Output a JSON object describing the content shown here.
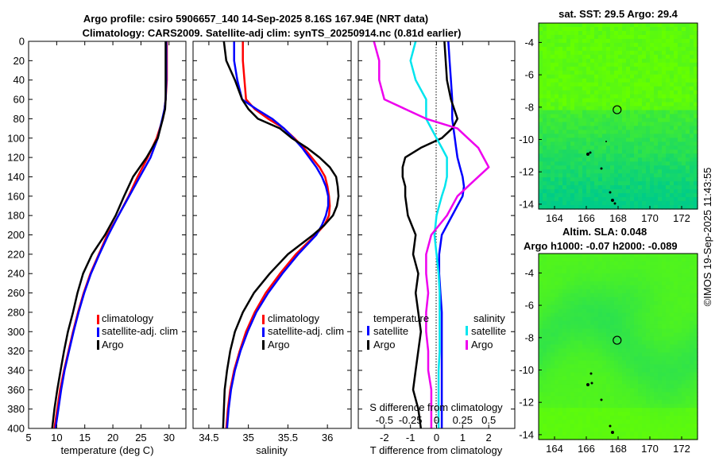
{
  "title": {
    "line1": "Argo profile: csiro 5906657_140 14-Sep-2025 8.16S 167.94E (NRT data)",
    "line2": "Climatology: CARS2009. Satellite-adj clim: synTS_20250914.nc (0.81d earlier)"
  },
  "watermark": "©IMOS 19-Sep-2025 11:43:55",
  "colors": {
    "climatology": "#ff0000",
    "satellite": "#0000ff",
    "argo": "#000000",
    "salinity_satellite": "#00e5ee",
    "salinity_argo": "#ee00ee",
    "map_high": "#66ff00",
    "map_low": "#00cc88"
  },
  "chart_data": [
    {
      "type": "line",
      "panel": "temperature",
      "xlabel": "temperature (deg C)",
      "ylabel": "",
      "xlim": [
        5,
        33
      ],
      "ylim": [
        400,
        0
      ],
      "xticks": [
        "5",
        "10",
        "15",
        "20",
        "25",
        "30"
      ],
      "yticks": [
        "0",
        "20",
        "40",
        "60",
        "80",
        "100",
        "120",
        "140",
        "160",
        "180",
        "200",
        "220",
        "240",
        "260",
        "280",
        "300",
        "320",
        "340",
        "360",
        "380",
        "400"
      ],
      "legend": [
        "climatology",
        "satellite-adj. clim",
        "Argo"
      ],
      "legend_position": "lower-right",
      "depth": [
        0,
        20,
        40,
        60,
        70,
        80,
        100,
        120,
        140,
        160,
        180,
        200,
        220,
        240,
        260,
        280,
        300,
        320,
        340,
        360,
        380,
        400
      ],
      "series": [
        {
          "name": "climatology",
          "values": [
            29.6,
            29.6,
            29.6,
            29.4,
            29.2,
            28.9,
            27.8,
            26.2,
            24.4,
            22.8,
            21.0,
            19.0,
            17.5,
            16.0,
            14.8,
            13.8,
            12.9,
            12.1,
            11.3,
            10.6,
            10.1,
            9.6
          ]
        },
        {
          "name": "satellite-adj. clim",
          "values": [
            29.5,
            29.5,
            29.5,
            29.4,
            29.2,
            28.8,
            28.0,
            26.7,
            24.8,
            22.9,
            21.0,
            19.2,
            17.6,
            16.1,
            14.9,
            13.9,
            13.0,
            12.2,
            11.4,
            10.8,
            10.3,
            9.8
          ]
        },
        {
          "name": "Argo",
          "values": [
            29.4,
            29.4,
            29.4,
            29.4,
            29.3,
            28.9,
            28.0,
            26.0,
            23.6,
            22.0,
            20.5,
            18.6,
            16.3,
            14.7,
            13.7,
            12.9,
            12.0,
            11.3,
            10.7,
            10.1,
            9.6,
            9.2
          ]
        }
      ]
    },
    {
      "type": "line",
      "panel": "salinity",
      "xlabel": "salinity",
      "xlim": [
        34.3,
        36.3
      ],
      "ylim": [
        400,
        0
      ],
      "xticks": [
        "34.5",
        "35",
        "35.5",
        "36"
      ],
      "legend": [
        "climatology",
        "satellite-adj. clim",
        "Argo"
      ],
      "legend_position": "lower-right",
      "depth": [
        0,
        20,
        40,
        60,
        70,
        80,
        90,
        100,
        110,
        120,
        130,
        140,
        150,
        160,
        170,
        180,
        190,
        200,
        220,
        240,
        260,
        280,
        300,
        320,
        340,
        360,
        380,
        400
      ],
      "series": [
        {
          "name": "climatology",
          "values": [
            34.93,
            34.93,
            34.95,
            34.97,
            35.08,
            35.25,
            35.45,
            35.58,
            35.7,
            35.8,
            35.9,
            35.97,
            36.0,
            36.02,
            36.03,
            36.02,
            35.96,
            35.85,
            35.6,
            35.4,
            35.22,
            35.08,
            34.97,
            34.89,
            34.82,
            34.77,
            34.74,
            34.72
          ]
        },
        {
          "name": "satellite-adj. clim",
          "values": [
            34.82,
            34.82,
            34.86,
            34.92,
            35.1,
            35.3,
            35.45,
            35.57,
            35.68,
            35.77,
            35.86,
            35.93,
            35.98,
            36.01,
            36.01,
            35.98,
            35.93,
            35.86,
            35.63,
            35.43,
            35.25,
            35.1,
            34.99,
            34.9,
            34.83,
            34.78,
            34.75,
            34.73
          ]
        },
        {
          "name": "Argo",
          "values": [
            34.69,
            34.72,
            34.83,
            34.92,
            35.0,
            35.12,
            35.4,
            35.55,
            35.74,
            35.9,
            36.03,
            36.11,
            36.13,
            36.14,
            36.12,
            36.07,
            35.96,
            35.82,
            35.5,
            35.27,
            35.07,
            34.93,
            34.83,
            34.77,
            34.73,
            34.7,
            34.69,
            34.68
          ]
        }
      ]
    },
    {
      "type": "line",
      "panel": "difference",
      "xlabel": "T difference from climatology",
      "xlabel_top": "S difference from climatology",
      "xlim": [
        -3,
        3
      ],
      "ylim": [
        400,
        0
      ],
      "xticks": [
        "-2",
        "-1",
        "0",
        "1",
        "2"
      ],
      "xticks_salinity": [
        "-0.5",
        "-0.25",
        "0",
        "0.25",
        "0.5"
      ],
      "legend_temperature_header": "temperature",
      "legend_salinity_header": "salinity",
      "legend": [
        "satellite",
        "Argo",
        "satellite",
        "Argo"
      ],
      "legend_position": "lower-center",
      "depth": [
        0,
        20,
        40,
        60,
        80,
        90,
        100,
        110,
        120,
        130,
        140,
        150,
        160,
        180,
        200,
        220,
        240,
        260,
        280,
        300,
        320,
        340,
        360,
        380,
        400
      ],
      "series": [
        {
          "name": "temperature satellite",
          "values": [
            0.45,
            0.5,
            0.55,
            0.6,
            0.6,
            0.65,
            0.7,
            0.75,
            0.8,
            0.9,
            1.0,
            1.05,
            1.0,
            0.6,
            0.2,
            0.1,
            0.1,
            0.15,
            0.2,
            0.2,
            0.2,
            0.2,
            0.2,
            0.2,
            0.2
          ]
        },
        {
          "name": "temperature Argo",
          "values": [
            0.3,
            0.35,
            0.4,
            0.55,
            0.8,
            0.6,
            0.2,
            -0.6,
            -1.2,
            -1.3,
            -1.3,
            -1.2,
            -1.2,
            -1.1,
            -0.8,
            -0.9,
            -0.7,
            -0.8,
            -0.7,
            -0.6,
            -0.7,
            -0.8,
            -0.9,
            -0.7,
            -0.6
          ]
        },
        {
          "name": "salinity satellite",
          "values": [
            -0.2,
            -0.25,
            -0.2,
            -0.1,
            -0.1,
            -0.05,
            0.0,
            0.05,
            0.1,
            0.1,
            0.1,
            0.08,
            0.05,
            0.0,
            -0.02,
            0.0,
            0.02,
            0.03,
            0.03,
            0.03,
            0.03,
            0.02,
            0.02,
            0.02,
            0.02
          ]
        },
        {
          "name": "salinity Argo",
          "values": [
            -0.6,
            -0.55,
            -0.55,
            -0.5,
            -0.1,
            0.2,
            0.3,
            0.4,
            0.45,
            0.5,
            0.4,
            0.3,
            0.2,
            0.1,
            -0.05,
            -0.1,
            -0.1,
            -0.08,
            -0.1,
            -0.1,
            -0.08,
            -0.08,
            -0.05,
            -0.05,
            -0.05
          ]
        }
      ]
    },
    {
      "type": "heatmap",
      "panel": "sst-map",
      "title": "sat. SST: 29.5 Argo: 29.4",
      "xlim": [
        163,
        173
      ],
      "ylim": [
        -14.3,
        -2.8
      ],
      "xticks": [
        "164",
        "166",
        "168",
        "170",
        "172"
      ],
      "yticks": [
        "-4",
        "-6",
        "-8",
        "-10",
        "-12",
        "-14"
      ],
      "argo_position": {
        "lon": 167.94,
        "lat": -8.16
      }
    },
    {
      "type": "heatmap",
      "panel": "sla-map",
      "title_line1": "Altim. SLA: 0.048",
      "title_line2": "Argo h1000: -0.07 h2000: -0.089",
      "xlim": [
        163,
        173
      ],
      "ylim": [
        -14.3,
        -2.8
      ],
      "xticks": [
        "164",
        "166",
        "168",
        "170",
        "172"
      ],
      "yticks": [
        "-4",
        "-6",
        "-8",
        "-10",
        "-12",
        "-14"
      ],
      "argo_position": {
        "lon": 167.94,
        "lat": -8.16
      }
    }
  ]
}
